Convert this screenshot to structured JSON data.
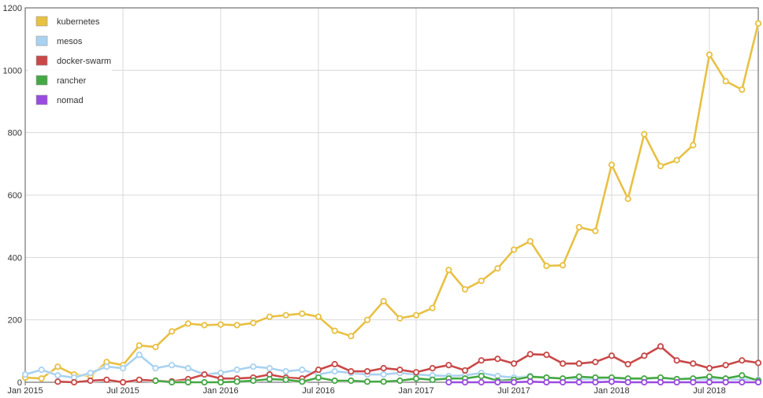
{
  "chart_data": {
    "type": "line",
    "title": "",
    "xlabel": "",
    "ylabel": "",
    "ylim": [
      0,
      1200
    ],
    "grid": true,
    "legend_position": "top-left",
    "y_ticks": [
      0,
      200,
      400,
      600,
      800,
      1000,
      1200
    ],
    "x_tick_labels": [
      {
        "label": "Jan 2015",
        "index": 0
      },
      {
        "label": "Jul 2015",
        "index": 6
      },
      {
        "label": "Jan 2016",
        "index": 12
      },
      {
        "label": "Jul 2016",
        "index": 18
      },
      {
        "label": "Jan 2017",
        "index": 24
      },
      {
        "label": "Jul 2017",
        "index": 30
      },
      {
        "label": "Jan 2018",
        "index": 36
      },
      {
        "label": "Jul 2018",
        "index": 42
      }
    ],
    "x": [
      "2015-01",
      "2015-02",
      "2015-03",
      "2015-04",
      "2015-05",
      "2015-06",
      "2015-07",
      "2015-08",
      "2015-09",
      "2015-10",
      "2015-11",
      "2015-12",
      "2016-01",
      "2016-02",
      "2016-03",
      "2016-04",
      "2016-05",
      "2016-06",
      "2016-07",
      "2016-08",
      "2016-09",
      "2016-10",
      "2016-11",
      "2016-12",
      "2017-01",
      "2017-02",
      "2017-03",
      "2017-04",
      "2017-05",
      "2017-06",
      "2017-07",
      "2017-08",
      "2017-09",
      "2017-10",
      "2017-11",
      "2017-12",
      "2018-01",
      "2018-02",
      "2018-03",
      "2018-04",
      "2018-05",
      "2018-06",
      "2018-07",
      "2018-08",
      "2018-09",
      "2018-10"
    ],
    "series": [
      {
        "name": "kubernetes",
        "color": "#e8c043",
        "values": [
          15,
          12,
          50,
          25,
          20,
          65,
          55,
          118,
          113,
          163,
          188,
          183,
          185,
          183,
          190,
          210,
          215,
          220,
          210,
          165,
          148,
          200,
          260,
          205,
          215,
          238,
          360,
          298,
          325,
          365,
          425,
          452,
          373,
          375,
          497,
          485,
          697,
          588,
          795,
          693,
          712,
          760,
          1050,
          965,
          938,
          1150
        ]
      },
      {
        "name": "mesos",
        "color": "#a9d2f0",
        "values": [
          25,
          40,
          22,
          15,
          30,
          50,
          45,
          88,
          45,
          55,
          45,
          25,
          30,
          40,
          50,
          45,
          35,
          40,
          25,
          35,
          30,
          25,
          25,
          30,
          25,
          22,
          20,
          22,
          30,
          20,
          15,
          20,
          15,
          12,
          10,
          10,
          12,
          10,
          10,
          12,
          10,
          8,
          10,
          10,
          8,
          8
        ]
      },
      {
        "name": "docker-swarm",
        "color": "#c94848",
        "values": [
          null,
          null,
          2,
          0,
          5,
          8,
          0,
          8,
          5,
          3,
          10,
          25,
          12,
          12,
          15,
          25,
          15,
          12,
          40,
          58,
          35,
          35,
          45,
          40,
          32,
          45,
          55,
          38,
          70,
          75,
          60,
          90,
          88,
          60,
          60,
          65,
          85,
          58,
          85,
          115,
          70,
          60,
          45,
          55,
          70,
          62
        ]
      },
      {
        "name": "rancher",
        "color": "#45a845",
        "values": [
          null,
          null,
          null,
          null,
          null,
          null,
          null,
          null,
          5,
          0,
          0,
          0,
          0,
          2,
          5,
          10,
          8,
          2,
          15,
          5,
          5,
          2,
          2,
          5,
          12,
          8,
          12,
          12,
          20,
          5,
          8,
          18,
          15,
          12,
          18,
          15,
          15,
          12,
          12,
          15,
          10,
          12,
          18,
          12,
          22,
          5
        ]
      },
      {
        "name": "nomad",
        "color": "#9a4be0",
        "values": [
          null,
          null,
          null,
          null,
          null,
          null,
          null,
          null,
          null,
          null,
          null,
          null,
          null,
          null,
          null,
          null,
          null,
          null,
          null,
          null,
          null,
          null,
          null,
          null,
          null,
          null,
          0,
          0,
          0,
          0,
          0,
          2,
          0,
          0,
          0,
          0,
          2,
          0,
          0,
          0,
          0,
          0,
          0,
          0,
          0,
          0
        ]
      }
    ]
  }
}
